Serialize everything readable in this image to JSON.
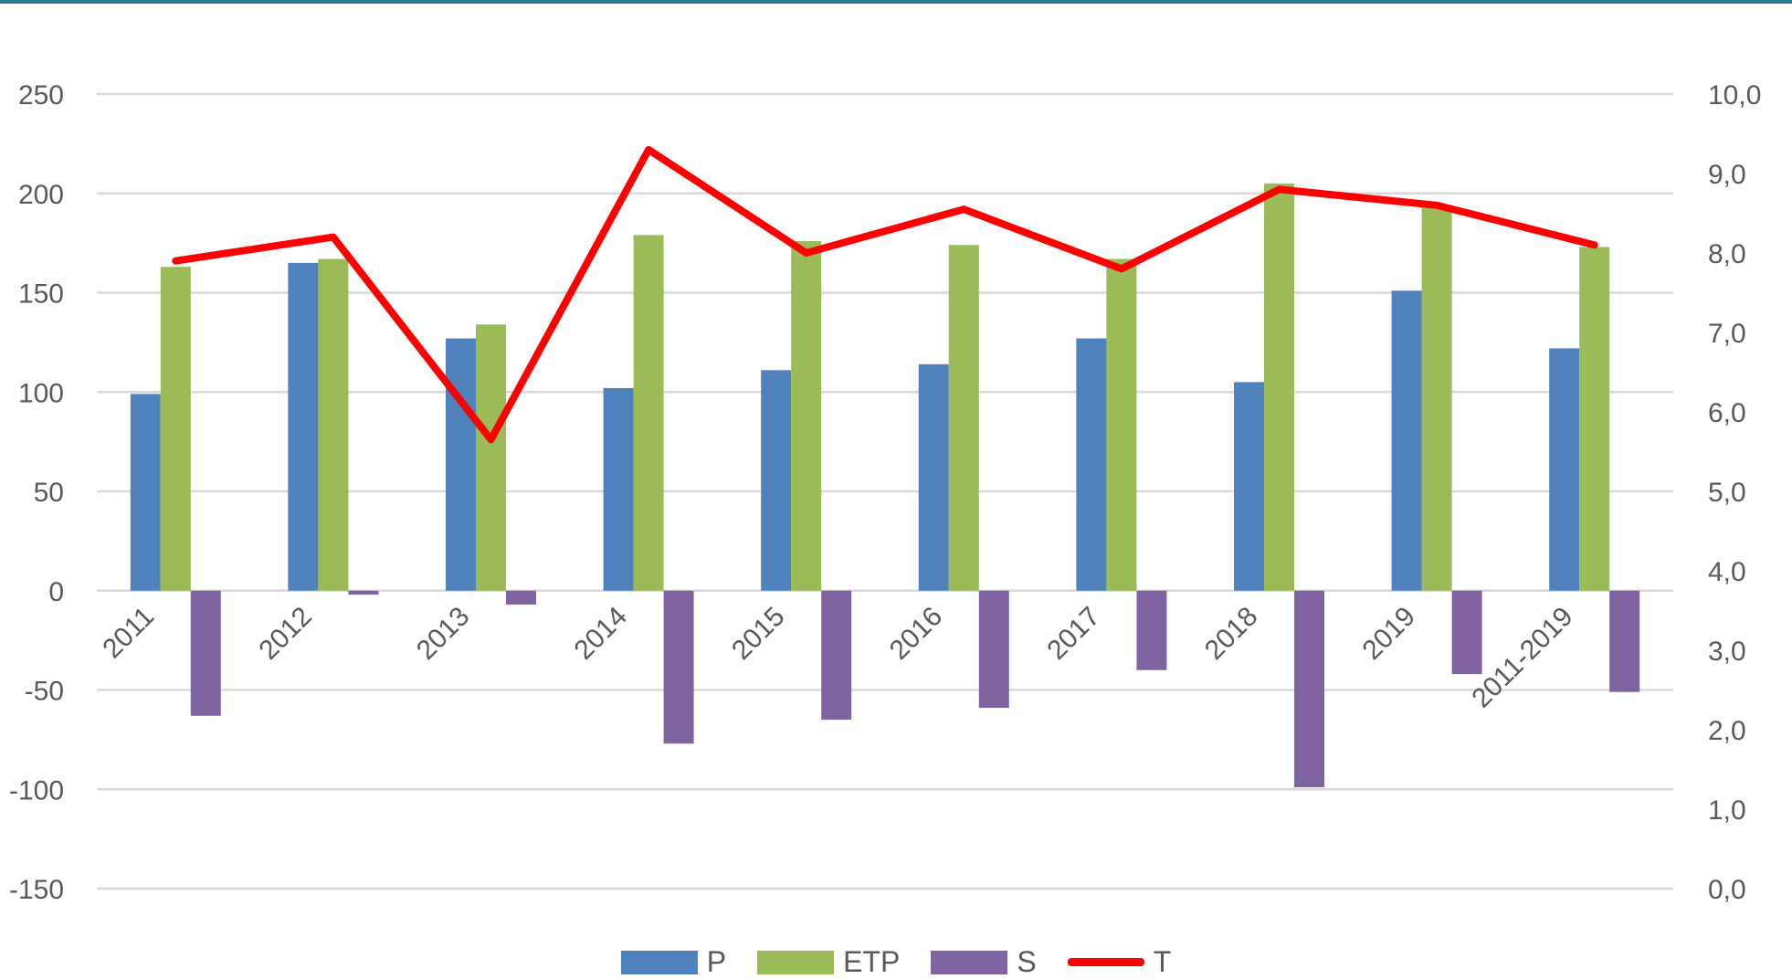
{
  "chart_data": {
    "type": "bar",
    "combo": "clustered column + line on secondary axis",
    "title": "",
    "xlabel": "",
    "ylabel": "",
    "categories": [
      "2011",
      "2012",
      "2013",
      "2014",
      "2015",
      "2016",
      "2017",
      "2018",
      "2019",
      "2011-2019"
    ],
    "series": [
      {
        "name": "P",
        "type": "bar",
        "axis": "left",
        "color": "#4f81bd",
        "values": [
          99,
          165,
          127,
          102,
          111,
          114,
          127,
          105,
          151,
          122
        ]
      },
      {
        "name": "ETP",
        "type": "bar",
        "axis": "left",
        "color": "#9bbb59",
        "values": [
          163,
          167,
          134,
          179,
          176,
          174,
          167,
          205,
          193,
          173
        ]
      },
      {
        "name": "S",
        "type": "bar",
        "axis": "left",
        "color": "#8064a2",
        "values": [
          -63,
          -2,
          -7,
          -77,
          -65,
          -59,
          -40,
          -99,
          -42,
          -51
        ]
      },
      {
        "name": "T",
        "type": "line",
        "axis": "right",
        "color": "#ff0000",
        "values": [
          7.9,
          8.2,
          5.65,
          9.3,
          8.0,
          8.55,
          7.8,
          8.8,
          8.6,
          8.1
        ]
      }
    ],
    "left_axis": {
      "ylim": [
        -150,
        250
      ],
      "ticks": [
        "250",
        "200",
        "150",
        "100",
        "50",
        "0",
        "-50",
        "-100",
        "-150"
      ]
    },
    "right_axis": {
      "ylim": [
        0,
        10
      ],
      "ticks": [
        "10,0",
        "9,0",
        "8,0",
        "7,0",
        "6,0",
        "5,0",
        "4,0",
        "3,0",
        "2,0",
        "1,0",
        "0,0"
      ]
    },
    "grid": true,
    "legend_position": "bottom"
  },
  "legend": [
    {
      "label": "P",
      "color": "#4f81bd",
      "kind": "bar"
    },
    {
      "label": "ETP",
      "color": "#9bbb59",
      "kind": "bar"
    },
    {
      "label": "S",
      "color": "#8064a2",
      "kind": "bar"
    },
    {
      "label": "T",
      "color": "#ff0000",
      "kind": "line"
    }
  ],
  "colors": {
    "top_rule": "#2a7a8c",
    "grid": "#d9d9d9",
    "tick_text": "#595959"
  }
}
